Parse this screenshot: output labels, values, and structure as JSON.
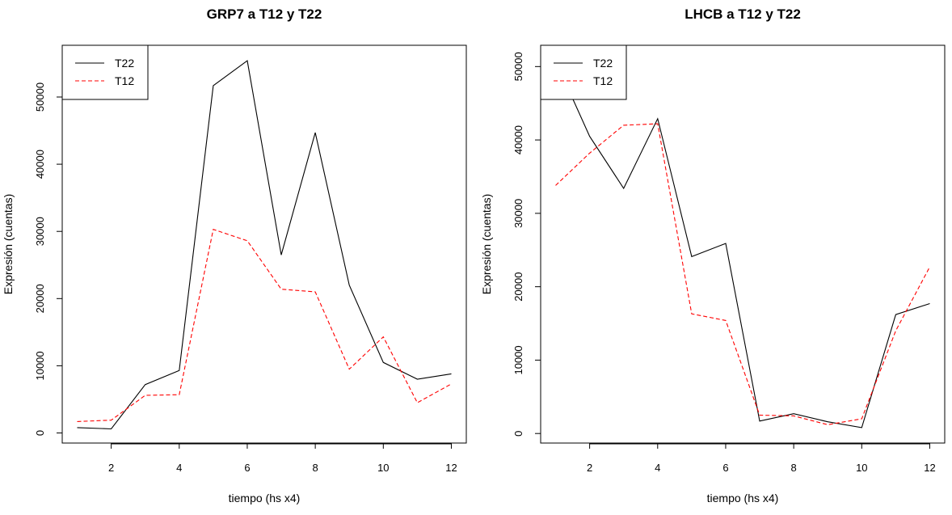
{
  "chart_data": [
    {
      "type": "line",
      "title": "GRP7 a T12 y T22",
      "xlabel": "tiempo (hs x4)",
      "ylabel": "Expresión (cuentas)",
      "xlim": [
        0.56,
        12.44
      ],
      "ylim": [
        -1500,
        57700
      ],
      "xticks": [
        2,
        4,
        6,
        8,
        10,
        12
      ],
      "yticks": [
        0,
        10000,
        20000,
        30000,
        40000,
        50000
      ],
      "grid": false,
      "legend_position": "top-left",
      "x": [
        1,
        2,
        3,
        4,
        5,
        6,
        7,
        8,
        9,
        10,
        11,
        12
      ],
      "series": [
        {
          "name": "T22",
          "color": "#000000",
          "dash": "solid",
          "values": [
            800,
            600,
            7200,
            9300,
            51700,
            55400,
            26500,
            44700,
            22000,
            10500,
            8000,
            8800
          ]
        },
        {
          "name": "T12",
          "color": "#ff0000",
          "dash": "dashed",
          "values": [
            1700,
            1900,
            5600,
            5700,
            30300,
            28600,
            21400,
            21000,
            9500,
            14300,
            4500,
            7300
          ]
        }
      ]
    },
    {
      "type": "line",
      "title": "LHCB a T12 y T22",
      "xlabel": "tiempo (hs x4)",
      "ylabel": "Expresión (cuentas)",
      "xlim": [
        0.56,
        12.44
      ],
      "ylim": [
        -1300,
        52900
      ],
      "xticks": [
        2,
        4,
        6,
        8,
        10,
        12
      ],
      "yticks": [
        0,
        10000,
        20000,
        30000,
        40000,
        50000
      ],
      "grid": false,
      "legend_position": "top-left",
      "x": [
        1,
        2,
        3,
        4,
        5,
        6,
        7,
        8,
        9,
        10,
        11,
        12
      ],
      "series": [
        {
          "name": "T22",
          "color": "#000000",
          "dash": "solid",
          "values": [
            50800,
            40500,
            33400,
            42900,
            24100,
            25900,
            1700,
            2700,
            1600,
            800,
            16200,
            17700
          ]
        },
        {
          "name": "T12",
          "color": "#ff0000",
          "dash": "dashed",
          "values": [
            33800,
            38200,
            42000,
            42200,
            16300,
            15400,
            2500,
            2400,
            1200,
            2000,
            14000,
            22700
          ]
        }
      ]
    }
  ]
}
